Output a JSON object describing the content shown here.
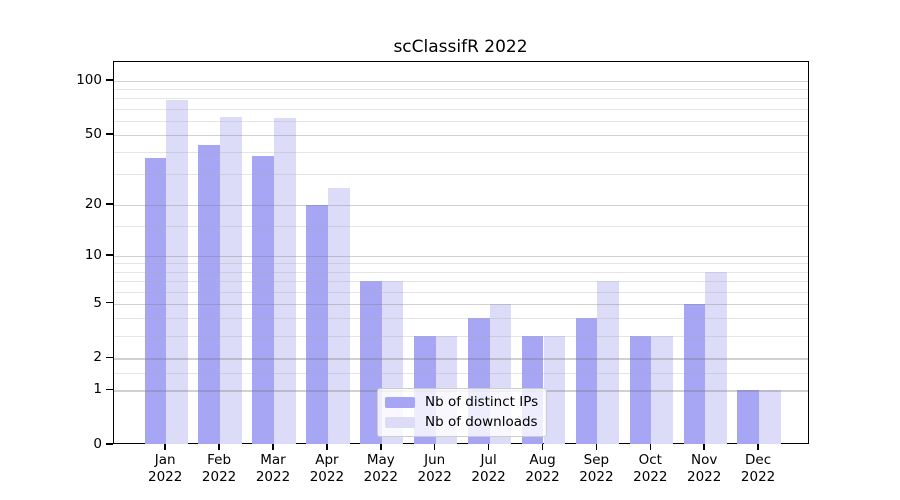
{
  "chart_data": {
    "type": "bar",
    "title": "scClassifR 2022",
    "categories": [
      "Jan 2022",
      "Feb 2022",
      "Mar 2022",
      "Apr 2022",
      "May 2022",
      "Jun 2022",
      "Jul 2022",
      "Aug 2022",
      "Sep 2022",
      "Oct 2022",
      "Nov 2022",
      "Dec 2022"
    ],
    "series": [
      {
        "name": "Nb of distinct IPs",
        "color": "#a6a6f5",
        "values": [
          37,
          44,
          38,
          20,
          7,
          3,
          4,
          3,
          4,
          3,
          5,
          1
        ]
      },
      {
        "name": "Nb of downloads",
        "color": "#dcdcf8",
        "values": [
          78,
          63,
          62,
          25,
          7,
          3,
          5,
          3,
          7,
          3,
          8,
          1
        ]
      }
    ],
    "yscale": "log1p",
    "ylim": [
      0,
      128
    ],
    "yticks": [
      0,
      1,
      2,
      5,
      10,
      20,
      50,
      100
    ],
    "yticks_minor": [
      1.5,
      3,
      4,
      6,
      7,
      8,
      9,
      15,
      30,
      40,
      60,
      70,
      80,
      90
    ],
    "grid": "horizontal-only",
    "legend_position": "inside-bottom-center"
  }
}
